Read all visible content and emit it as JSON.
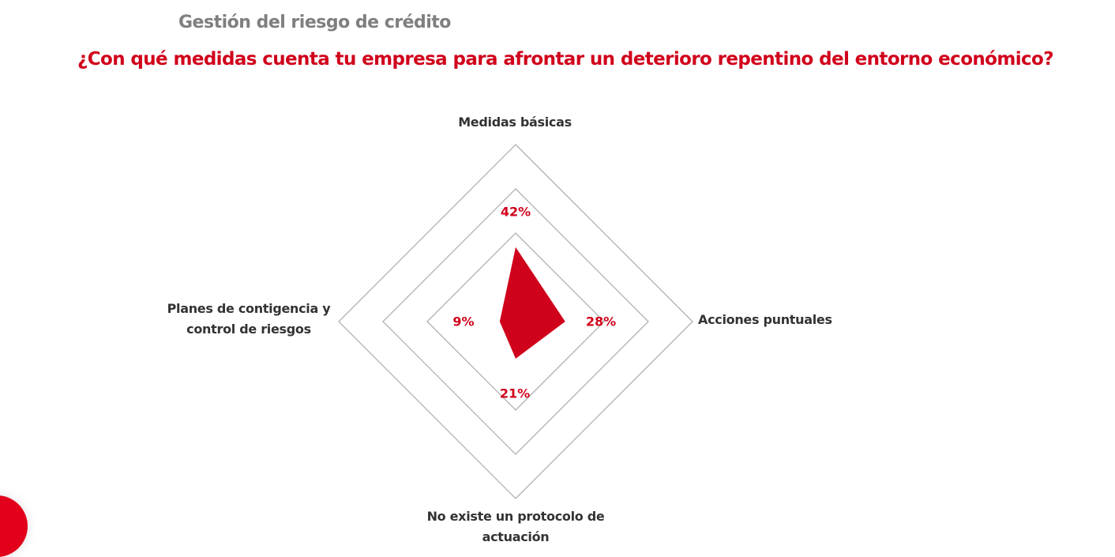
{
  "header": {
    "section": "Gestión del riesgo de crédito",
    "question": "¿Con qué medidas cuenta tu empresa para afrontar un deterioro repentino del entorno económico?"
  },
  "chart_data": {
    "type": "radar",
    "title": "¿Con qué medidas cuenta tu empresa para afrontar un deterioro repentino del entorno económico?",
    "categories": [
      "Medidas básicas",
      "Acciones puntuales",
      "No existe un protocolo de actuación",
      "Planes de contigencia y control de riesgos"
    ],
    "category_labels": {
      "top": "Medidas básicas",
      "right": "Acciones puntuales",
      "bottom_line1": "No existe un protocolo de",
      "bottom_line2": "actuación",
      "left_line1": "Planes de contigencia y",
      "left_line2": "control de riesgos"
    },
    "values": [
      42,
      28,
      21,
      9
    ],
    "value_labels": [
      "42%",
      "28%",
      "21%",
      "9%"
    ],
    "rmax": 100,
    "grid_levels": [
      50,
      75,
      100
    ],
    "fill_color": "#d0021b",
    "grid_color": "#b0b0b0"
  }
}
